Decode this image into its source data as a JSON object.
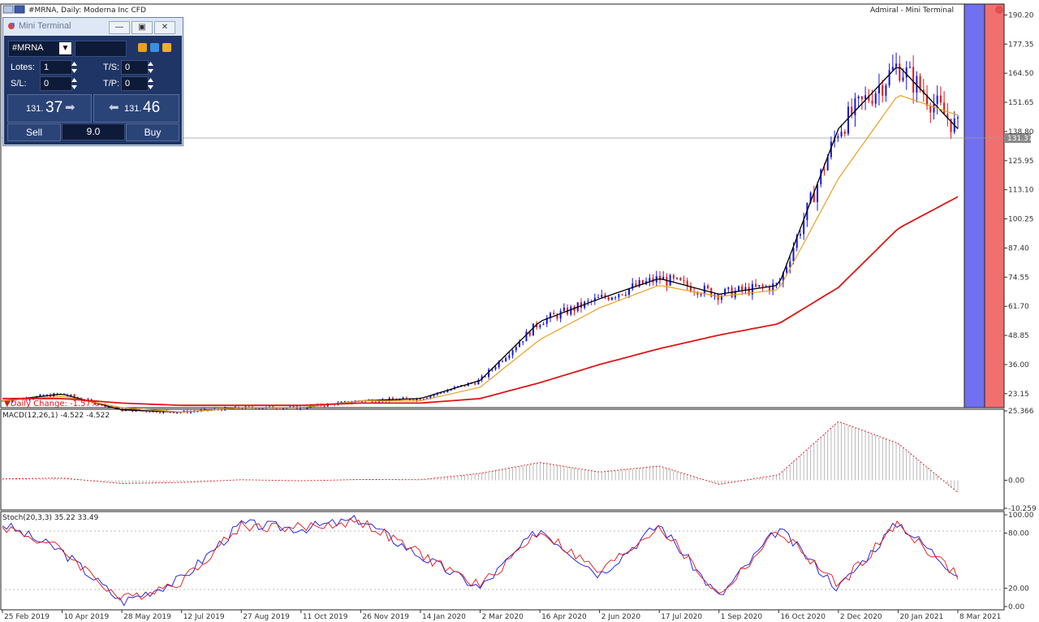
{
  "window_title": "#MRNA, Daily:  Moderna Inc CFD",
  "watermark": "Admiral - Mini Terminal",
  "daily_change": "Daily Change: -1.57%",
  "colors": {
    "bull": "#1515e0",
    "bear": "#e01515",
    "ma_short": "#000000",
    "ma_mid": "#e8a020",
    "ma_long": "#e01515",
    "right_blue": "#7070f0",
    "right_red": "#f07070"
  },
  "mini_terminal": {
    "title": "Mini Terminal",
    "symbol": "#MRNA",
    "lots_label": "Lotes:",
    "lots_value": "1",
    "ts_label": "T/S:",
    "ts_value": "0",
    "sl_label": "S/L:",
    "sl_value": "0",
    "tp_label": "T/P:",
    "tp_value": "0",
    "sell_price_small": "131.",
    "sell_price_big": "37",
    "buy_price_small": "131.",
    "buy_price_big": "46",
    "sell_label": "Sell",
    "spread": "9.0",
    "buy_label": "Buy"
  },
  "price_axis": {
    "ticks": [
      "190.20",
      "177.35",
      "164.50",
      "151.65",
      "138.80",
      "125.95",
      "113.10",
      "100.25",
      "87.40",
      "74.55",
      "61.70",
      "48.85",
      "36.00",
      "23.15"
    ],
    "current": "131.37"
  },
  "macd_panel": {
    "label": "MACD(12,26,1) -4.522 -4.522",
    "ticks": [
      "25.366",
      "0.00",
      "-10.259"
    ]
  },
  "stoch_panel": {
    "label": "Stoch(20,3,3) 35.22 33.49",
    "ticks": [
      "100.00",
      "80.00",
      "20.00",
      "0.00"
    ]
  },
  "date_axis": [
    "25 Feb 2019",
    "10 Apr 2019",
    "28 May 2019",
    "12 Jul 2019",
    "27 Aug 2019",
    "11 Oct 2019",
    "26 Nov 2019",
    "14 Jan 2020",
    "2 Mar 2020",
    "16 Apr 2020",
    "2 Jun 2020",
    "17 Jul 2020",
    "1 Sep 2020",
    "16 Oct 2020",
    "2 Dec 2020",
    "20 Jan 2021",
    "8 Mar 2021"
  ],
  "chart_data": [
    {
      "type": "line",
      "title": "#MRNA, Daily:  Moderna Inc CFD",
      "x": [
        "25 Feb 2019",
        "10 Apr 2019",
        "28 May 2019",
        "12 Jul 2019",
        "27 Aug 2019",
        "11 Oct 2019",
        "26 Nov 2019",
        "14 Jan 2020",
        "2 Mar 2020",
        "16 Apr 2020",
        "2 Jun 2020",
        "17 Jul 2020",
        "1 Sep 2020",
        "16 Oct 2020",
        "2 Dec 2020",
        "20 Jan 2021",
        "8 Mar 2021"
      ],
      "series": [
        {
          "name": "",
          "values": [
            20,
            23,
            16,
            15,
            17,
            17,
            20,
            21,
            29,
            55,
            65,
            74,
            67,
            71,
            140,
            168,
            140
          ]
        },
        {
          "name": "",
          "values": [
            20,
            22,
            17,
            15,
            17,
            17,
            20,
            20,
            26,
            47,
            61,
            71,
            66,
            69,
            118,
            155,
            146
          ]
        },
        {
          "name": "",
          "values": [
            21,
            21,
            19,
            18,
            18,
            18,
            19,
            19,
            21,
            28,
            36,
            43,
            49,
            54,
            70,
            96,
            110
          ]
        }
      ],
      "ylim": [
        17,
        195
      ],
      "current": 131.37
    },
    {
      "type": "bar",
      "title": "MACD(12,26,1) -4.522 -4.522",
      "x": [
        "25 Feb 2019",
        "10 Apr 2019",
        "28 May 2019",
        "12 Jul 2019",
        "27 Aug 2019",
        "11 Oct 2019",
        "26 Nov 2019",
        "14 Jan 2020",
        "2 Mar 2020",
        "16 Apr 2020",
        "2 Jun 2020",
        "17 Jul 2020",
        "1 Sep 2020",
        "16 Oct 2020",
        "2 Dec 2020",
        "20 Jan 2021",
        "8 Mar 2021"
      ],
      "values": [
        0.5,
        0.8,
        -1.2,
        -0.8,
        0.2,
        -0.2,
        0.3,
        0.2,
        2.5,
        6.5,
        3.0,
        5.2,
        -1.5,
        2.0,
        21.5,
        13.5,
        -4.5
      ],
      "ylim": [
        -10.259,
        25.366
      ]
    },
    {
      "type": "line",
      "title": "Stoch(20,3,3) 35.22 33.49",
      "x": [
        "25 Feb 2019",
        "10 Apr 2019",
        "28 May 2019",
        "12 Jul 2019",
        "27 Aug 2019",
        "11 Oct 2019",
        "26 Nov 2019",
        "14 Jan 2020",
        "2 Mar 2020",
        "16 Apr 2020",
        "2 Jun 2020",
        "17 Jul 2020",
        "1 Sep 2020",
        "16 Oct 2020",
        "2 Dec 2020",
        "20 Jan 2021",
        "8 Mar 2021"
      ],
      "series": [
        {
          "name": "",
          "values": [
            90,
            60,
            5,
            30,
            90,
            85,
            95,
            55,
            20,
            85,
            35,
            90,
            10,
            85,
            20,
            92,
            35
          ]
        },
        {
          "name": "",
          "values": [
            88,
            62,
            7,
            28,
            88,
            86,
            93,
            57,
            22,
            83,
            37,
            88,
            12,
            83,
            22,
            90,
            33
          ]
        }
      ],
      "ylim": [
        0,
        100
      ]
    }
  ]
}
